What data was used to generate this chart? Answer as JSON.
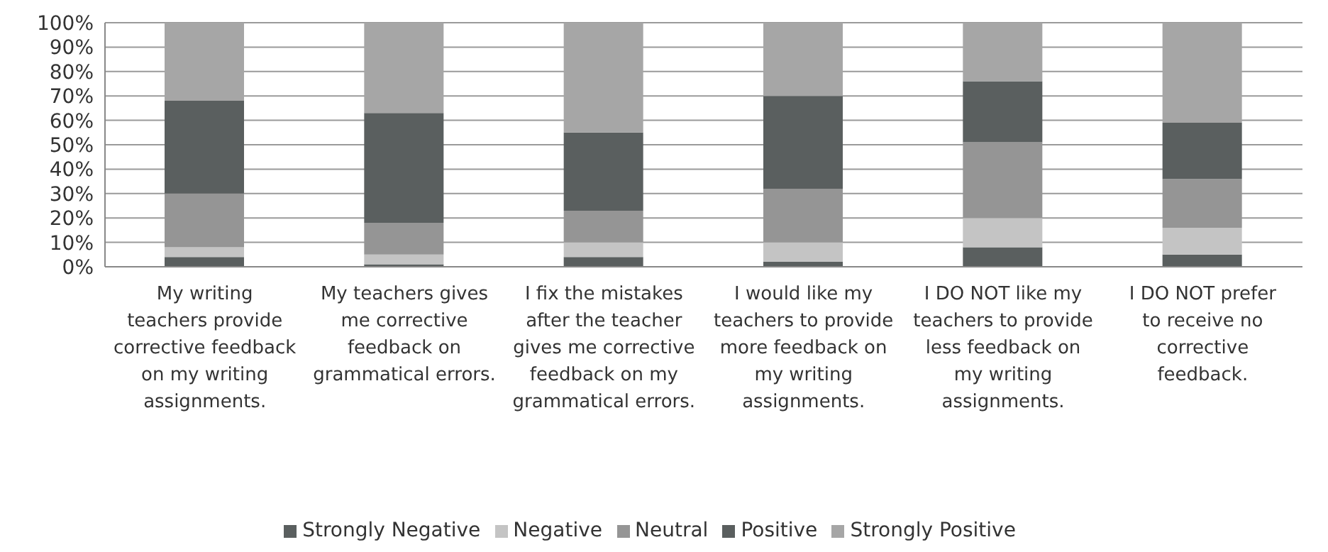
{
  "chart_data": {
    "type": "bar",
    "stacked": true,
    "categories": [
      "My writing teachers provide corrective feedback on my writing assignments.",
      "My teachers gives me corrective feedback on grammatical errors.",
      "I fix the mistakes after the teacher gives me corrective feedback on my grammatical errors.",
      "I would like my teachers to provide more feedback on my writing assignments.",
      "I DO NOT like my teachers to provide less feedback on my writing assignments.",
      "I DO NOT prefer to receive no corrective feedback."
    ],
    "series": [
      {
        "name": "Strongly Negative",
        "color": "#5a5f5f",
        "values": [
          4,
          1,
          4,
          2,
          8,
          5
        ]
      },
      {
        "name": "Negative",
        "color": "#c4c4c4",
        "values": [
          4,
          4,
          6,
          8,
          12,
          11
        ]
      },
      {
        "name": "Neutral",
        "color": "#959595",
        "values": [
          22,
          13,
          13,
          22,
          31,
          20
        ]
      },
      {
        "name": "Positive",
        "color": "#5a5f5f",
        "values": [
          38,
          45,
          32,
          38,
          25,
          23
        ]
      },
      {
        "name": "Strongly Positive",
        "color": "#a6a6a6",
        "values": [
          32,
          37,
          45,
          30,
          24,
          41
        ]
      }
    ],
    "ylim": [
      0,
      100
    ],
    "yticks": [
      {
        "value": 0,
        "label": "0%"
      },
      {
        "value": 10,
        "label": "10%"
      },
      {
        "value": 20,
        "label": "20%"
      },
      {
        "value": 30,
        "label": "30%"
      },
      {
        "value": 40,
        "label": "40%"
      },
      {
        "value": 50,
        "label": "50%"
      },
      {
        "value": 60,
        "label": "60%"
      },
      {
        "value": 70,
        "label": "70%"
      },
      {
        "value": 80,
        "label": "80%"
      },
      {
        "value": 90,
        "label": "90%"
      },
      {
        "value": 100,
        "label": "100%"
      }
    ],
    "grid": "y",
    "legend": "bottom"
  }
}
